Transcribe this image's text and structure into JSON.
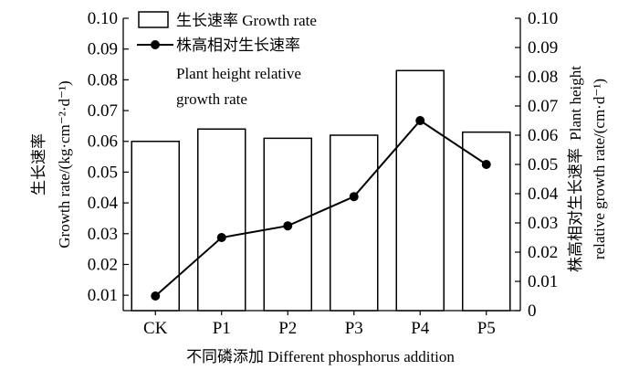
{
  "chart_data": {
    "type": "bar",
    "categories": [
      "CK",
      "P1",
      "P2",
      "P3",
      "P4",
      "P5"
    ],
    "series": [
      {
        "name": "生长速率 Growth rate",
        "type": "bar",
        "axis": "left",
        "values": [
          0.06,
          0.064,
          0.061,
          0.062,
          0.083,
          0.063
        ]
      },
      {
        "name": "株高相对生长速率",
        "name_line2": "Plant height relative",
        "name_line3": "growth rate",
        "type": "line",
        "axis": "right",
        "marker": "circle",
        "values": [
          0.005,
          0.025,
          0.029,
          0.039,
          0.065,
          0.05
        ]
      }
    ],
    "xlabel": "不同磷添加 Different phosphorus addition",
    "ylabel_left_cn": "生长速率",
    "ylabel_left_en": "Growth rate/(kg·cm⁻²·d⁻¹)",
    "ylabel_right_cn": "株高相对生长速率",
    "ylabel_right_en": "Plant height",
    "ylabel_right_en2": "relative growth rate/(cm·d⁻¹)",
    "ylim_left": [
      0.005,
      0.1
    ],
    "ylim_right": [
      0,
      0.1
    ],
    "yticks_left": [
      "0.01",
      "0.02",
      "0.03",
      "0.04",
      "0.05",
      "0.06",
      "0.07",
      "0.08",
      "0.09",
      "0.10"
    ],
    "yticks_right": [
      "0",
      "0.01",
      "0.02",
      "0.03",
      "0.04",
      "0.05",
      "0.06",
      "0.07",
      "0.08",
      "0.09",
      "0.10"
    ],
    "grid": false,
    "legend_position": "top-left"
  }
}
